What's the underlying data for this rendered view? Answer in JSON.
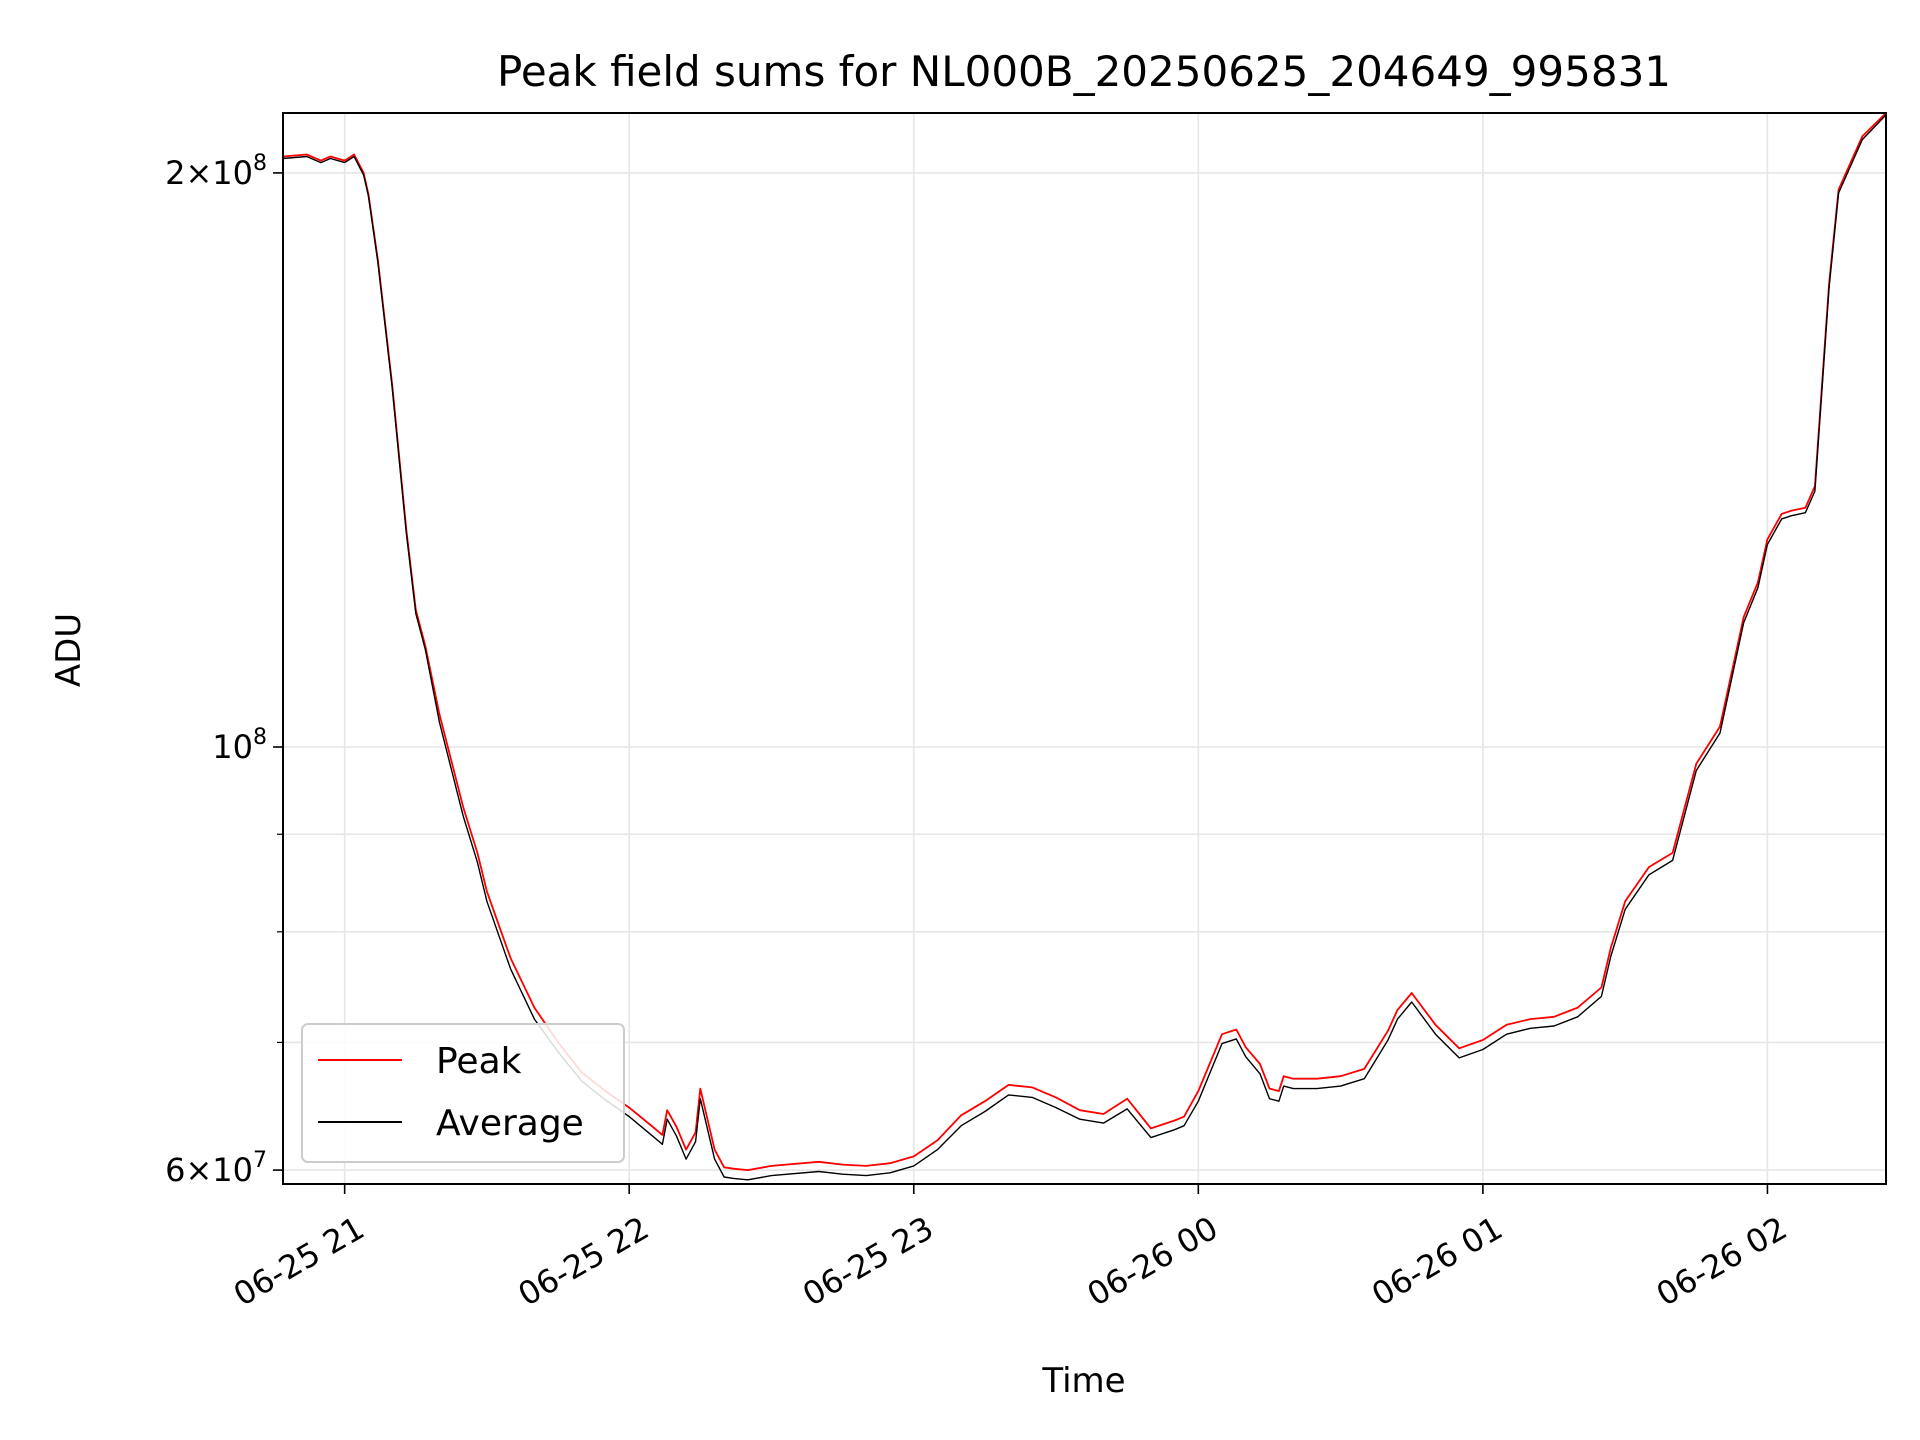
{
  "chart_data": {
    "type": "line",
    "title": "Peak field sums for NL000B_20250625_204649_995831",
    "xlabel": "Time",
    "ylabel": "ADU",
    "yscale": "log",
    "grid": true,
    "legend_position": "lower-left",
    "xlim": [
      "2025-06-25 20:47",
      "2025-06-26 02:25"
    ],
    "ylim": [
      59000000,
      215000000
    ],
    "x_ticks": [
      "06-25 21",
      "06-25 22",
      "06-25 23",
      "06-26 00",
      "06-26 01",
      "06-26 02"
    ],
    "y_ticks": [
      {
        "value": 60000000,
        "mantissa": "6",
        "exp": "7",
        "times": "×10"
      },
      {
        "value": 100000000,
        "mantissa": "",
        "exp": "8",
        "times": "10"
      },
      {
        "value": 200000000,
        "mantissa": "2",
        "exp": "8",
        "times": "×10"
      }
    ],
    "x_times": [
      "20:47",
      "20:52",
      "20:55",
      "20:57",
      "21:00",
      "21:02",
      "21:04",
      "21:05",
      "21:07",
      "21:10",
      "21:13",
      "21:15",
      "21:17",
      "21:20",
      "21:25",
      "21:28",
      "21:30",
      "21:33",
      "21:35",
      "21:40",
      "21:45",
      "21:50",
      "21:55",
      "22:00",
      "22:05",
      "22:07",
      "22:08",
      "22:10",
      "22:12",
      "22:14",
      "22:15",
      "22:18",
      "22:20",
      "22:22",
      "22:25",
      "22:30",
      "22:40",
      "22:45",
      "22:50",
      "22:55",
      "23:00",
      "23:05",
      "23:10",
      "23:15",
      "23:20",
      "23:25",
      "23:30",
      "23:35",
      "23:40",
      "23:45",
      "23:50",
      "23:55",
      "23:57",
      "00:00",
      "00:05",
      "00:08",
      "00:10",
      "00:13",
      "00:15",
      "00:17",
      "00:18",
      "00:20",
      "00:25",
      "00:30",
      "00:35",
      "00:40",
      "00:42",
      "00:45",
      "00:50",
      "00:55",
      "01:00",
      "01:05",
      "01:10",
      "01:15",
      "01:20",
      "01:25",
      "01:27",
      "01:30",
      "01:35",
      "01:40",
      "01:45",
      "01:50",
      "01:55",
      "01:58",
      "02:00",
      "02:03",
      "02:05",
      "02:08",
      "02:10",
      "02:13",
      "02:15",
      "02:20",
      "02:25"
    ],
    "series": [
      {
        "name": "Peak",
        "color": "#ff0000",
        "values": [
          204000000,
          204500000,
          203000000,
          204000000,
          203000000,
          204500000,
          200000000,
          195000000,
          180000000,
          155000000,
          130000000,
          118000000,
          113000000,
          104000000,
          93000000,
          88000000,
          84000000,
          80000000,
          77500000,
          73000000,
          70000000,
          67500000,
          66000000,
          64700000,
          63200000,
          62600000,
          64500000,
          63200000,
          61500000,
          62800000,
          66200000,
          61500000,
          60200000,
          60100000,
          60000000,
          60300000,
          60600000,
          60400000,
          60300000,
          60500000,
          61000000,
          62200000,
          64100000,
          65200000,
          66500000,
          66300000,
          65500000,
          64500000,
          64200000,
          65400000,
          63100000,
          63700000,
          64000000,
          66000000,
          70700000,
          71100000,
          69600000,
          68200000,
          66200000,
          66000000,
          67200000,
          67000000,
          67000000,
          67200000,
          67800000,
          71000000,
          72800000,
          74300000,
          71500000,
          69500000,
          70200000,
          71500000,
          72000000,
          72200000,
          73000000,
          74800000,
          78500000,
          83000000,
          86500000,
          88000000,
          98000000,
          102500000,
          117000000,
          122000000,
          128500000,
          132500000,
          133000000,
          133500000,
          137000000,
          175000000,
          196000000,
          209000000,
          215000000
        ]
      },
      {
        "name": "Average",
        "color": "#000000",
        "values": [
          203500000,
          204000000,
          202500000,
          203500000,
          202500000,
          204000000,
          199500000,
          194500000,
          179500000,
          154500000,
          129500000,
          117500000,
          112500000,
          103000000,
          92000000,
          87000000,
          83000000,
          79000000,
          76500000,
          72000000,
          69200000,
          66800000,
          65300000,
          64000000,
          62500000,
          61900000,
          63800000,
          62500000,
          60800000,
          62100000,
          65400000,
          60800000,
          59500000,
          59400000,
          59300000,
          59600000,
          59900000,
          59700000,
          59600000,
          59800000,
          60300000,
          61500000,
          63300000,
          64400000,
          65700000,
          65500000,
          64700000,
          63800000,
          63500000,
          64600000,
          62400000,
          63000000,
          63300000,
          65200000,
          69900000,
          70300000,
          68800000,
          67400000,
          65400000,
          65200000,
          66400000,
          66200000,
          66200000,
          66400000,
          67000000,
          70200000,
          72000000,
          73500000,
          70700000,
          68700000,
          69400000,
          70700000,
          71200000,
          71400000,
          72200000,
          74000000,
          77700000,
          82200000,
          85700000,
          87200000,
          97200000,
          101700000,
          116200000,
          121200000,
          127700000,
          131700000,
          132200000,
          132700000,
          136200000,
          174200000,
          195200000,
          208200000,
          214500000
        ]
      }
    ]
  }
}
